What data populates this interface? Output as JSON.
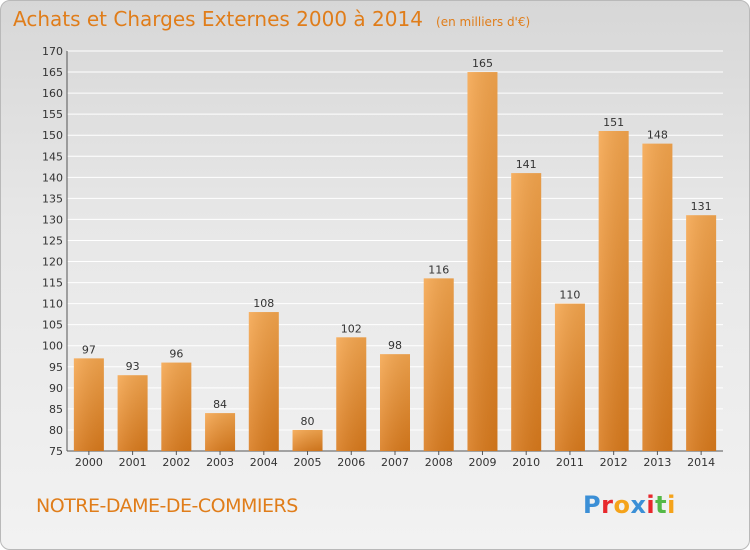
{
  "title": "Achats et Charges Externes 2000 à 2014",
  "unit_label": "(en milliers d'€)",
  "commune": "NOTRE-DAME-DE-COMMIERS",
  "logo": {
    "letters": [
      "P",
      "r",
      "o",
      "x",
      "i",
      "t",
      "i"
    ],
    "colors": [
      "#3b8fd6",
      "#e8282c",
      "#f5a31a",
      "#3b8fd6",
      "#e8282c",
      "#55b947",
      "#f5a31a"
    ]
  },
  "colors": {
    "accent": "#e07d1a",
    "bar_top": "#f5a64e",
    "bar_bottom": "#d97a1c",
    "grid": "#ffffff"
  },
  "chart_data": {
    "type": "bar",
    "title": "Achats et Charges Externes 2000 à 2014",
    "xlabel": "",
    "ylabel": "",
    "categories": [
      "2000",
      "2001",
      "2002",
      "2003",
      "2004",
      "2005",
      "2006",
      "2007",
      "2008",
      "2009",
      "2010",
      "2011",
      "2012",
      "2013",
      "2014"
    ],
    "values": [
      97,
      93,
      96,
      84,
      108,
      80,
      102,
      98,
      116,
      165,
      141,
      110,
      151,
      148,
      131
    ],
    "ylim": [
      75,
      170
    ],
    "yticks": [
      75,
      80,
      85,
      90,
      95,
      100,
      105,
      110,
      115,
      120,
      125,
      130,
      135,
      140,
      145,
      150,
      155,
      160,
      165,
      170
    ],
    "grid": true
  }
}
